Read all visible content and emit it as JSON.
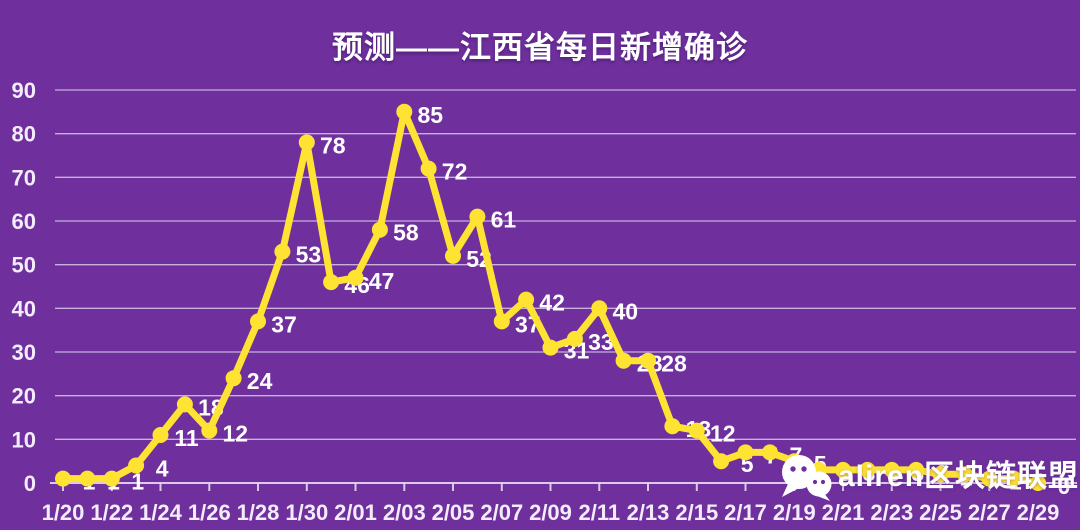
{
  "title": "预测——江西省每日新增确诊",
  "watermark": {
    "text": "aliren区块链联盟",
    "icon": "wechat-icon"
  },
  "colors": {
    "background": "#6F309E",
    "line": "#FFE333",
    "point": "#FFE333",
    "value_label": "#FFFFFF",
    "tick_label": "#F3ECFA",
    "grid": "#E6DAF2"
  },
  "chart_data": {
    "type": "line",
    "x": [
      "1/20",
      "1/21",
      "1/22",
      "1/23",
      "1/24",
      "1/25",
      "1/26",
      "1/27",
      "1/28",
      "1/29",
      "1/30",
      "1/31",
      "2/01",
      "2/02",
      "2/03",
      "2/04",
      "2/05",
      "2/06",
      "2/07",
      "2/08",
      "2/09",
      "2/10",
      "2/11",
      "2/12",
      "2/13",
      "2/14",
      "2/15",
      "2/16",
      "2/17",
      "2/18",
      "2/19",
      "2/20",
      "2/21",
      "2/22",
      "2/23",
      "2/24",
      "2/25",
      "2/26",
      "2/27",
      "2/28",
      "2/29"
    ],
    "values": [
      1,
      1,
      1,
      4,
      11,
      18,
      12,
      24,
      37,
      53,
      78,
      46,
      47,
      58,
      85,
      72,
      52,
      61,
      37,
      42,
      31,
      33,
      40,
      28,
      28,
      13,
      12,
      5,
      7,
      7,
      5,
      3,
      3,
      3,
      3,
      3,
      2,
      2,
      1,
      1,
      0
    ],
    "x_tick_labels": [
      "1/20",
      "1/22",
      "1/24",
      "1/26",
      "1/28",
      "1/30",
      "2/01",
      "2/03",
      "2/05",
      "2/07",
      "2/09",
      "2/11",
      "2/13",
      "2/15",
      "2/17",
      "2/19",
      "2/21",
      "2/23",
      "2/25",
      "2/27",
      "2/29"
    ],
    "y_tick_labels": [
      "0",
      "10",
      "20",
      "30",
      "40",
      "50",
      "60",
      "70",
      "80",
      "90"
    ],
    "ylim": [
      0,
      90
    ],
    "grid": true,
    "data_labels": true,
    "legend": "none",
    "title": "预测——江西省每日新增确诊"
  }
}
